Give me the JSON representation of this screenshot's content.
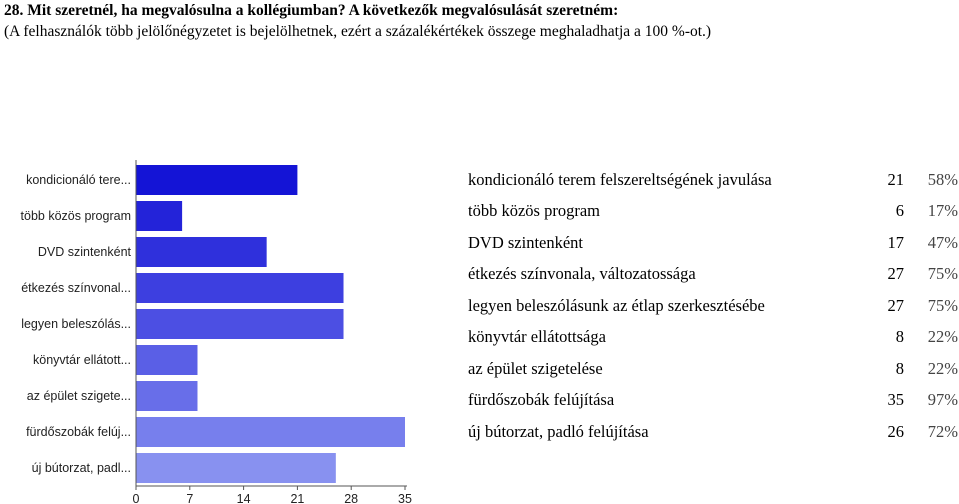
{
  "question": {
    "title": "28. Mit szeretnél, ha megvalósulna a kollégiumban? A következők megvalósulását szeretném:",
    "subtitle": "(A felhasználók több jelölőnégyzetet is bejelölhetnek, ezért a százalékértékek összege meghaladhatja a 100 %-ot.)"
  },
  "chart_data": {
    "type": "bar",
    "orientation": "horizontal",
    "categories": [
      "kondicionáló tere...",
      "több közös program",
      "DVD szintenként",
      "étkezés színvonal...",
      "legyen beleszólás...",
      "könyvtár ellátott...",
      "az épület szigete...",
      "fürdőszobák felúj...",
      "új bútorzat, padl..."
    ],
    "values": [
      21,
      6,
      17,
      27,
      27,
      8,
      8,
      35,
      26
    ],
    "xlim": [
      0,
      35
    ],
    "xticks": [
      0,
      7,
      14,
      21,
      28,
      35
    ],
    "bar_colors": [
      "#1414d6",
      "#2323d9",
      "#2f30dc",
      "#3d3fe0",
      "#4c4fe3",
      "#5a5fe6",
      "#686ee9",
      "#777fed",
      "#8891f0"
    ],
    "grid": false
  },
  "table": [
    {
      "label": "kondicionáló terem felszereltségének javulása",
      "count": "21",
      "pct": "58%"
    },
    {
      "label": "több közös program",
      "count": "6",
      "pct": "17%"
    },
    {
      "label": "DVD szintenként",
      "count": "17",
      "pct": "47%"
    },
    {
      "label": "étkezés színvonala, változatossága",
      "count": "27",
      "pct": "75%"
    },
    {
      "label": "legyen beleszólásunk az étlap szerkesztésébe",
      "count": "27",
      "pct": "75%"
    },
    {
      "label": "könyvtár ellátottsága",
      "count": "8",
      "pct": "22%"
    },
    {
      "label": "az épület szigetelése",
      "count": "8",
      "pct": "22%"
    },
    {
      "label": "fürdőszobák felújítása",
      "count": "35",
      "pct": "97%"
    },
    {
      "label": "új bútorzat, padló felújítása",
      "count": "26",
      "pct": "72%"
    }
  ]
}
